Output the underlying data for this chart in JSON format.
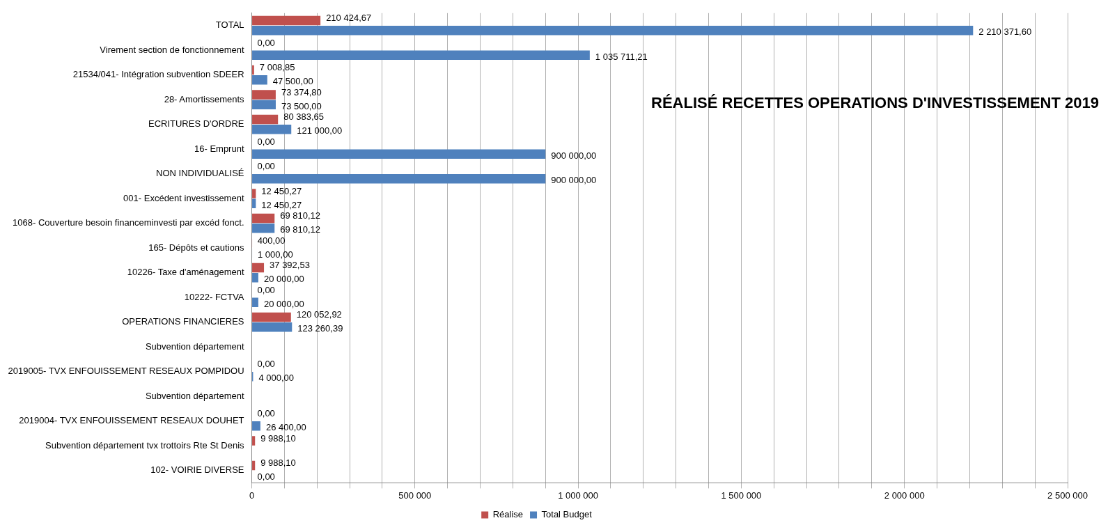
{
  "chart_data": {
    "type": "bar",
    "orientation": "horizontal",
    "title": "RÉALISÉ RECETTES OPERATIONS D'INVESTISSEMENT 2019",
    "categories": [
      "TOTAL",
      "Virement section de fonctionnement",
      "21534/041- Intégration subvention SDEER",
      "28- Amortissements",
      "ECRITURES D'ORDRE",
      "16- Emprunt",
      "NON INDIVIDUALISÉ",
      "001- Excédent investissement",
      "1068- Couverture besoin financeminvesti par excéd fonct.",
      "165- Dépôts et cautions",
      "10226- Taxe d'aménagement",
      "10222- FCTVA",
      "OPERATIONS FINANCIERES",
      "Subvention département",
      "2019005- TVX ENFOUISSEMENT RESEAUX POMPIDOU",
      "Subvention département",
      "2019004- TVX ENFOUISSEMENT RESEAUX DOUHET",
      "Subvention département tvx trottoirs Rte St Denis",
      "102- VOIRIE DIVERSE"
    ],
    "series": [
      {
        "name": "Réalise",
        "color": "#c0504d",
        "values": [
          210424.67,
          0,
          7008.85,
          73374.8,
          80383.65,
          0,
          0,
          12450.27,
          69810.12,
          400,
          37392.53,
          0,
          120052.92,
          null,
          0,
          null,
          0,
          9988.1,
          9988.1
        ],
        "value_labels": [
          "210 424,67",
          "0,00",
          "7 008,85",
          "73 374,80",
          "80 383,65",
          "0,00",
          "0,00",
          "12 450,27",
          "69 810,12",
          "400,00",
          "37 392,53",
          "0,00",
          "120 052,92",
          null,
          "0,00",
          null,
          "0,00",
          "9 988,10",
          "9 988,10"
        ]
      },
      {
        "name": "Total Budget",
        "color": "#4f81bd",
        "values": [
          2210371.6,
          1035711.21,
          47500,
          73500,
          121000,
          900000,
          900000,
          12450.27,
          69810.12,
          1000,
          20000,
          20000,
          123260.39,
          null,
          4000,
          null,
          26400,
          null,
          0
        ],
        "value_labels": [
          "2 210 371,60",
          "1 035 711,21",
          "47 500,00",
          "73 500,00",
          "121 000,00",
          "900 000,00",
          "900 000,00",
          "12 450,27",
          "69 810,12",
          "1 000,00",
          "20 000,00",
          "20 000,00",
          "123 260,39",
          null,
          "4 000,00",
          null,
          "26 400,00",
          null,
          "0,00"
        ]
      }
    ],
    "xlim": [
      0,
      2500000
    ],
    "xticks": [
      0,
      {
        "value": 100000,
        "label": null
      },
      {
        "value": 200000,
        "label": null
      },
      {
        "value": 300000,
        "label": null
      },
      {
        "value": 400000,
        "label": null
      },
      {
        "value": 500000,
        "label": "500 000"
      },
      {
        "value": 600000,
        "label": null
      },
      {
        "value": 700000,
        "label": null
      },
      {
        "value": 800000,
        "label": null
      },
      {
        "value": 900000,
        "label": null
      },
      {
        "value": 1000000,
        "label": "1 000 000"
      },
      {
        "value": 1100000,
        "label": null
      },
      {
        "value": 1200000,
        "label": null
      },
      {
        "value": 1300000,
        "label": null
      },
      {
        "value": 1400000,
        "label": null
      },
      {
        "value": 1500000,
        "label": "1 500 000"
      },
      {
        "value": 1600000,
        "label": null
      },
      {
        "value": 1700000,
        "label": null
      },
      {
        "value": 1800000,
        "label": null
      },
      {
        "value": 1900000,
        "label": null
      },
      {
        "value": 2000000,
        "label": "2 000 000"
      },
      {
        "value": 2100000,
        "label": null
      },
      {
        "value": 2200000,
        "label": null
      },
      {
        "value": 2300000,
        "label": null
      },
      {
        "value": 2400000,
        "label": null
      },
      {
        "value": 2500000,
        "label": "2 500 000"
      }
    ],
    "grid": "x",
    "legend": "bottom"
  }
}
